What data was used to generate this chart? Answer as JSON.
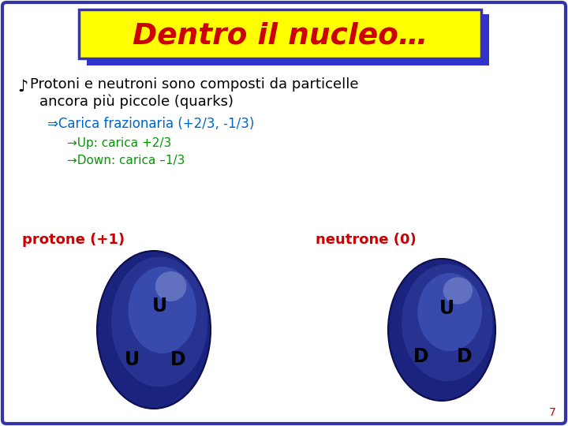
{
  "background_color": "#ffffff",
  "border_color": "#3333aa",
  "title_text": "Dentro il nucleo…",
  "title_bg": "#ffff00",
  "title_color": "#cc0000",
  "title_shadow_color": "#3333cc",
  "bullet_symbol": "♪",
  "bullet_color": "#000000",
  "bullet_text1a": "Protoni e neutroni sono composti da particelle",
  "bullet_text1b": "ancora più piccole (quarks)",
  "sub_bullet_text": "⇒Carica frazionaria (+2/3, -1/3)",
  "sub_bullet_color": "#0066cc",
  "sub_sub1": "→Up: carica +2/3",
  "sub_sub2": "→Down: carica –1/3",
  "sub_sub_color": "#009900",
  "proton_label": "protone (+1)",
  "neutron_label": "neutrone (0)",
  "label_color": "#cc0000",
  "ellipse_dark": "#1a237e",
  "ellipse_mid": "#283593",
  "ellipse_light": "#5c6bc0",
  "ellipse_highlight": "#7986cb",
  "quark_text_color": "#000000",
  "page_number": "7",
  "page_color": "#cc0000"
}
